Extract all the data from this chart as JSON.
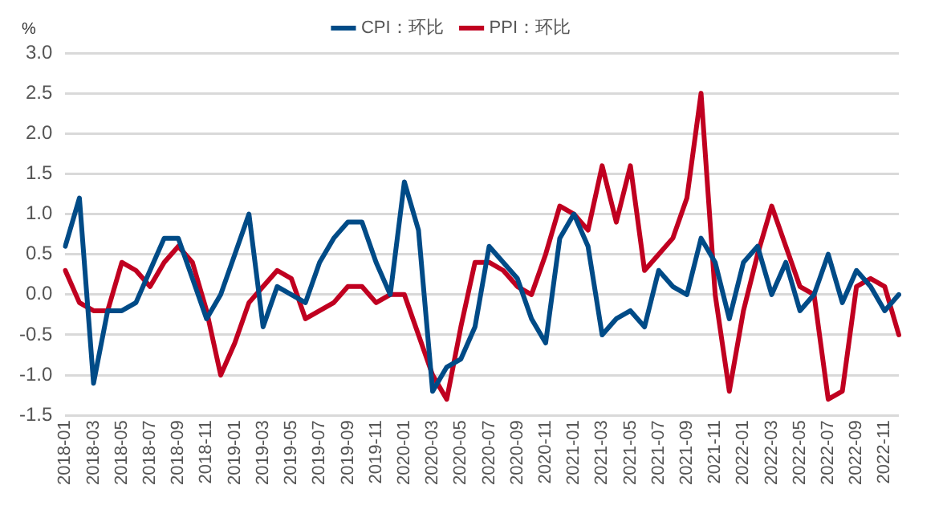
{
  "chart_data": {
    "type": "line",
    "ylabel": "%",
    "categories": [
      "2018-01",
      null,
      "2018-03",
      null,
      "2018-05",
      null,
      "2018-07",
      null,
      "2018-09",
      null,
      "2018-11",
      null,
      "2019-01",
      null,
      "2019-03",
      null,
      "2019-05",
      null,
      "2019-07",
      null,
      "2019-09",
      null,
      "2019-11",
      null,
      "2020-01",
      null,
      "2020-03",
      null,
      "2020-05",
      null,
      "2020-07",
      null,
      "2020-09",
      null,
      "2020-11",
      null,
      "2021-01",
      null,
      "2021-03",
      null,
      "2021-05",
      null,
      "2021-07",
      null,
      "2021-09",
      null,
      "2021-11",
      null,
      "2022-01",
      null,
      "2022-03",
      null,
      "2022-05",
      null,
      "2022-07",
      null,
      "2022-09",
      null,
      "2022-11",
      null
    ],
    "series": [
      {
        "name": "CPI：环比",
        "color": "#004b87",
        "values": [
          0.6,
          1.2,
          -1.1,
          -0.2,
          -0.2,
          -0.1,
          0.3,
          0.7,
          0.7,
          0.2,
          -0.3,
          0.0,
          0.5,
          1.0,
          -0.4,
          0.1,
          0.0,
          -0.1,
          0.4,
          0.7,
          0.9,
          0.9,
          0.4,
          0.0,
          1.4,
          0.8,
          -1.2,
          -0.9,
          -0.8,
          -0.4,
          0.6,
          0.4,
          0.2,
          -0.3,
          -0.6,
          0.7,
          1.0,
          0.6,
          -0.5,
          -0.3,
          -0.2,
          -0.4,
          0.3,
          0.1,
          0.0,
          0.7,
          0.4,
          -0.3,
          0.4,
          0.6,
          0.0,
          0.4,
          -0.2,
          0.0,
          0.5,
          -0.1,
          0.3,
          0.1,
          -0.2,
          0.0
        ]
      },
      {
        "name": "PPI：环比",
        "color": "#c00020",
        "values": [
          0.3,
          -0.1,
          -0.2,
          -0.2,
          0.4,
          0.3,
          0.1,
          0.4,
          0.6,
          0.4,
          -0.2,
          -1.0,
          -0.6,
          -0.1,
          0.1,
          0.3,
          0.2,
          -0.3,
          -0.2,
          -0.1,
          0.1,
          0.1,
          -0.1,
          0.0,
          0.0,
          -0.5,
          -1.0,
          -1.3,
          -0.4,
          0.4,
          0.4,
          0.3,
          0.1,
          0.0,
          0.5,
          1.1,
          1.0,
          0.8,
          1.6,
          0.9,
          1.6,
          0.3,
          0.5,
          0.7,
          1.2,
          2.5,
          0.0,
          -1.2,
          -0.2,
          0.5,
          1.1,
          0.6,
          0.1,
          0.0,
          -1.3,
          -1.2,
          0.1,
          0.2,
          0.1,
          -0.5
        ]
      }
    ],
    "ylim": [
      -1.5,
      3.0
    ],
    "yticks": [
      {
        "value": -1.5,
        "label": "-1.5"
      },
      {
        "value": -1.0,
        "label": "-1.0"
      },
      {
        "value": -0.5,
        "label": "-0.5"
      },
      {
        "value": 0,
        "label": "0.0"
      },
      {
        "value": 0.5,
        "label": "0.5"
      },
      {
        "value": 1.0,
        "label": "1.0"
      },
      {
        "value": 1.5,
        "label": "1.5"
      },
      {
        "value": 2.0,
        "label": "2.0"
      },
      {
        "value": 2.5,
        "label": "2.5"
      },
      {
        "value": 3.0,
        "label": "3.0"
      }
    ],
    "grid": "y",
    "legend": "top",
    "marker": "none",
    "line_style": "solid"
  }
}
